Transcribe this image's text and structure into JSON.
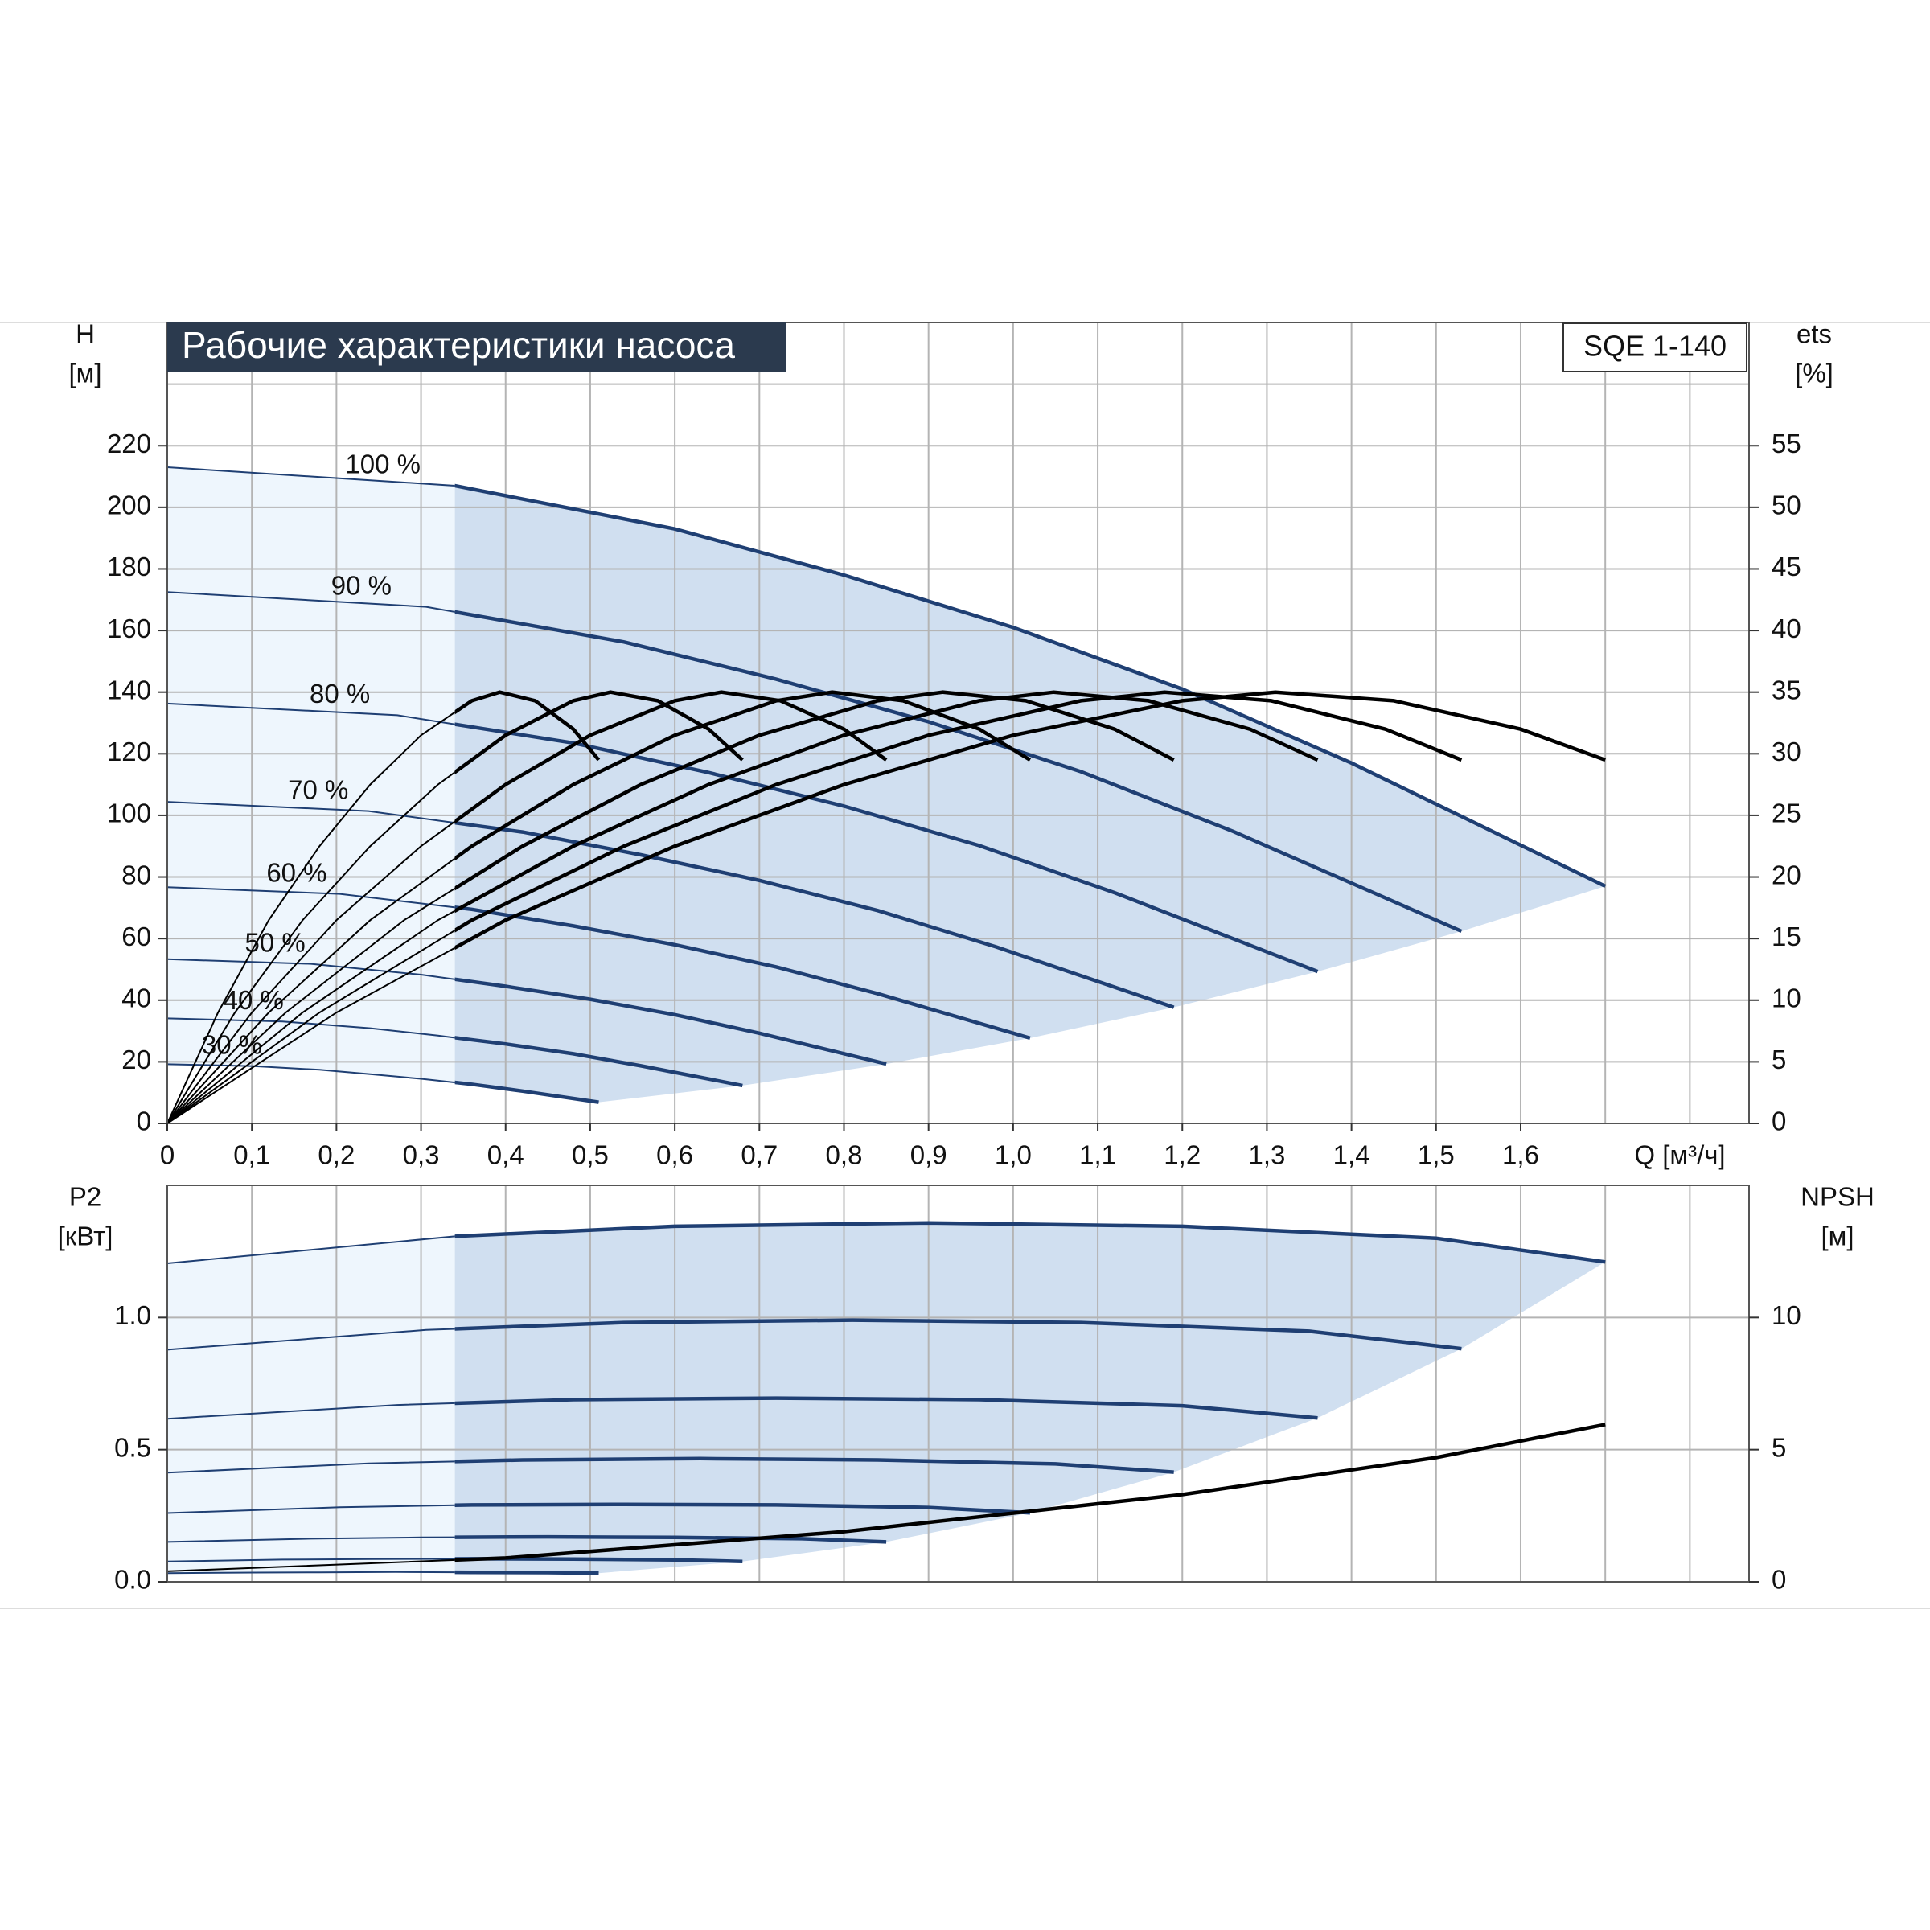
{
  "chart_data": [
    {
      "type": "line",
      "title": "Рабочие характеристики насоса",
      "annotation": "SQE 1-140",
      "ylabel": "H",
      "yunit": "[м]",
      "y2label": "ets",
      "y2unit": "[%]",
      "xlabel": "Q [м³/ч]",
      "xlim": [
        0,
        1.87
      ],
      "xticks": [
        0,
        {
          "value": 0.1,
          "label": "0,1"
        },
        {
          "value": 0.2,
          "label": "0,2"
        },
        {
          "value": 0.3,
          "label": "0,3"
        },
        {
          "value": 0.4,
          "label": "0,4"
        },
        {
          "value": 0.5,
          "label": "0,5"
        },
        {
          "value": 0.6,
          "label": "0,6"
        },
        {
          "value": 0.7,
          "label": "0,7"
        },
        {
          "value": 0.8,
          "label": "0,8"
        },
        {
          "value": 0.9,
          "label": "0,9"
        },
        {
          "value": 1.0,
          "label": "1,0"
        },
        {
          "value": 1.1,
          "label": "1,1"
        },
        {
          "value": 1.2,
          "label": "1,2"
        },
        {
          "value": 1.3,
          "label": "1,3"
        },
        {
          "value": 1.4,
          "label": "1,4"
        },
        {
          "value": 1.5,
          "label": "1,5"
        },
        {
          "value": 1.6,
          "label": "1,6"
        }
      ],
      "xgrid": [
        1.7,
        1.8
      ],
      "ylim": [
        0,
        260
      ],
      "yticks": [
        0,
        20,
        40,
        60,
        80,
        100,
        120,
        140,
        160,
        180,
        200,
        220
      ],
      "ygrid": [
        240
      ],
      "y2lim": [
        0,
        65
      ],
      "y2ticks": [
        0,
        5,
        10,
        15,
        20,
        25,
        30,
        35,
        40,
        45,
        50,
        55
      ],
      "grid": true,
      "shade_x": 0.34,
      "shade_colors": [
        "#eef6fd",
        "#d0dff0"
      ],
      "series": [
        {
          "name": "100 %",
          "color": "#1f3f73",
          "x": [
            0,
            0.34,
            0.6,
            0.8,
            1.0,
            1.2,
            1.4,
            1.7
          ],
          "values": [
            213,
            207,
            193,
            178,
            161,
            141,
            117,
            77
          ]
        },
        {
          "name": "90 %",
          "color": "#1f3f73",
          "x": [
            0,
            0.306,
            0.54,
            0.72,
            0.9,
            1.08,
            1.26,
            1.53
          ],
          "values": [
            172.5,
            167.7,
            156.3,
            144.2,
            130.4,
            114.2,
            94.8,
            62.4
          ]
        },
        {
          "name": "80 %",
          "color": "#1f3f73",
          "x": [
            0,
            0.272,
            0.48,
            0.64,
            0.8,
            0.96,
            1.12,
            1.36
          ],
          "values": [
            136.3,
            132.5,
            123.5,
            113.9,
            103,
            90.2,
            74.9,
            49.3
          ]
        },
        {
          "name": "70 %",
          "color": "#1f3f73",
          "x": [
            0,
            0.238,
            0.42,
            0.56,
            0.7,
            0.84,
            0.98,
            1.19
          ],
          "values": [
            104.4,
            101.4,
            94.6,
            87.2,
            78.9,
            69.1,
            57.3,
            37.7
          ]
        },
        {
          "name": "60 %",
          "color": "#1f3f73",
          "x": [
            0,
            0.204,
            0.36,
            0.48,
            0.6,
            0.72,
            0.84,
            1.02
          ],
          "values": [
            76.7,
            74.5,
            69.5,
            64.1,
            58,
            50.8,
            42.1,
            27.7
          ]
        },
        {
          "name": "50 %",
          "color": "#1f3f73",
          "x": [
            0,
            0.17,
            0.3,
            0.4,
            0.5,
            0.6,
            0.7,
            0.85
          ],
          "values": [
            53.3,
            51.8,
            48.3,
            44.5,
            40.3,
            35.3,
            29.3,
            19.3
          ]
        },
        {
          "name": "40 %",
          "color": "#1f3f73",
          "x": [
            0,
            0.136,
            0.24,
            0.32,
            0.4,
            0.48,
            0.56,
            0.68
          ],
          "values": [
            34.1,
            33.1,
            30.9,
            28.5,
            25.8,
            22.6,
            18.7,
            12.3
          ]
        },
        {
          "name": "30 %",
          "color": "#1f3f73",
          "x": [
            0,
            0.102,
            0.18,
            0.24,
            0.3,
            0.36,
            0.42,
            0.51
          ],
          "values": [
            19.2,
            18.6,
            17.4,
            16,
            14.5,
            12.7,
            10.5,
            6.9
          ]
        },
        {
          "color": "#000000",
          "axis": "y2",
          "x": [
            0,
            0.2,
            0.4,
            0.6,
            0.8,
            1.0,
            1.2,
            1.31,
            1.45,
            1.6,
            1.7
          ],
          "values": [
            0,
            9,
            16.5,
            22.5,
            27.5,
            31.5,
            34.3,
            35,
            34.3,
            32,
            29.5
          ]
        },
        {
          "color": "#000000",
          "axis": "y2",
          "x": [
            0,
            0.18,
            0.36,
            0.54,
            0.72,
            0.9,
            1.08,
            1.179,
            1.305,
            1.44,
            1.53
          ],
          "values": [
            0,
            9,
            16.5,
            22.5,
            27.5,
            31.5,
            34.3,
            35,
            34.3,
            32,
            29.5
          ]
        },
        {
          "color": "#000000",
          "axis": "y2",
          "x": [
            0,
            0.16,
            0.32,
            0.48,
            0.64,
            0.8,
            0.96,
            1.048,
            1.16,
            1.28,
            1.36
          ],
          "values": [
            0,
            9,
            16.5,
            22.5,
            27.5,
            31.5,
            34.3,
            35,
            34.3,
            32,
            29.5
          ]
        },
        {
          "color": "#000000",
          "axis": "y2",
          "x": [
            0,
            0.14,
            0.28,
            0.42,
            0.56,
            0.7,
            0.84,
            0.917,
            1.015,
            1.12,
            1.19
          ],
          "values": [
            0,
            9,
            16.5,
            22.5,
            27.5,
            31.5,
            34.3,
            35,
            34.3,
            32,
            29.5
          ]
        },
        {
          "color": "#000000",
          "axis": "y2",
          "x": [
            0,
            0.12,
            0.24,
            0.36,
            0.48,
            0.6,
            0.72,
            0.786,
            0.87,
            0.96,
            1.02
          ],
          "values": [
            0,
            9,
            16.5,
            22.5,
            27.5,
            31.5,
            34.3,
            35,
            34.3,
            32,
            29.5
          ]
        },
        {
          "color": "#000000",
          "axis": "y2",
          "x": [
            0,
            0.1,
            0.2,
            0.3,
            0.4,
            0.5,
            0.6,
            0.655,
            0.725,
            0.8,
            0.85
          ],
          "values": [
            0,
            9,
            16.5,
            22.5,
            27.5,
            31.5,
            34.3,
            35,
            34.3,
            32,
            29.5
          ]
        },
        {
          "color": "#000000",
          "axis": "y2",
          "x": [
            0,
            0.08,
            0.16,
            0.24,
            0.32,
            0.4,
            0.48,
            0.524,
            0.58,
            0.64,
            0.68
          ],
          "values": [
            0,
            9,
            16.5,
            22.5,
            27.5,
            31.5,
            34.3,
            35,
            34.3,
            32,
            29.5
          ]
        },
        {
          "color": "#000000",
          "axis": "y2",
          "x": [
            0,
            0.06,
            0.12,
            0.18,
            0.24,
            0.3,
            0.36,
            0.393,
            0.435,
            0.48,
            0.51
          ],
          "values": [
            0,
            9,
            16.5,
            22.5,
            27.5,
            31.5,
            34.3,
            35,
            34.3,
            32,
            29.5
          ]
        }
      ]
    },
    {
      "type": "line",
      "ylabel": "P2",
      "yunit": "[кВт]",
      "y2label": "NPSH",
      "y2unit": "[м]",
      "xlim": [
        0,
        1.87
      ],
      "ylim": [
        0,
        1.5
      ],
      "yticks": [
        {
          "value": 0,
          "label": "0.0"
        },
        0.5,
        {
          "value": 1.0,
          "label": "1.0"
        }
      ],
      "y2lim": [
        0,
        15
      ],
      "y2ticks": [
        0,
        5,
        10
      ],
      "grid": true,
      "shade_x": 0.34,
      "shade_colors": [
        "#eef6fd",
        "#d0dff0"
      ],
      "series": [
        {
          "color": "#1f3f73",
          "x": [
            0,
            0.34,
            0.6,
            0.9,
            1.2,
            1.5,
            1.7
          ],
          "values": [
            1.205,
            1.307,
            1.345,
            1.358,
            1.345,
            1.3,
            1.21
          ]
        },
        {
          "color": "#1f3f73",
          "x": [
            0,
            0.306,
            0.54,
            0.81,
            1.08,
            1.35,
            1.53
          ],
          "values": [
            0.878,
            0.953,
            0.981,
            0.99,
            0.981,
            0.948,
            0.882
          ]
        },
        {
          "color": "#1f3f73",
          "x": [
            0,
            0.272,
            0.48,
            0.72,
            0.96,
            1.2,
            1.36
          ],
          "values": [
            0.617,
            0.669,
            0.689,
            0.695,
            0.689,
            0.666,
            0.62
          ]
        },
        {
          "color": "#1f3f73",
          "x": [
            0,
            0.238,
            0.42,
            0.63,
            0.84,
            1.05,
            1.19
          ],
          "values": [
            0.413,
            0.448,
            0.461,
            0.466,
            0.461,
            0.446,
            0.415
          ]
        },
        {
          "color": "#1f3f73",
          "x": [
            0,
            0.204,
            0.36,
            0.54,
            0.72,
            0.9,
            1.02
          ],
          "values": [
            0.26,
            0.282,
            0.291,
            0.293,
            0.291,
            0.281,
            0.261
          ]
        },
        {
          "color": "#1f3f73",
          "x": [
            0,
            0.17,
            0.3,
            0.45,
            0.6,
            0.75,
            0.85
          ],
          "values": [
            0.151,
            0.163,
            0.168,
            0.17,
            0.168,
            0.163,
            0.151
          ]
        },
        {
          "color": "#1f3f73",
          "x": [
            0,
            0.136,
            0.24,
            0.36,
            0.48,
            0.6,
            0.68
          ],
          "values": [
            0.077,
            0.084,
            0.086,
            0.087,
            0.086,
            0.083,
            0.077
          ]
        },
        {
          "color": "#1f3f73",
          "x": [
            0,
            0.102,
            0.18,
            0.27,
            0.36,
            0.45,
            0.51
          ],
          "values": [
            0.033,
            0.035,
            0.036,
            0.037,
            0.036,
            0.035,
            0.033
          ]
        },
        {
          "color": "#000000",
          "axis": "y2",
          "x": [
            0,
            0.4,
            0.8,
            1.2,
            1.5,
            1.7
          ],
          "values": [
            0.4,
            0.9,
            1.9,
            3.3,
            4.7,
            5.95
          ]
        }
      ]
    }
  ]
}
